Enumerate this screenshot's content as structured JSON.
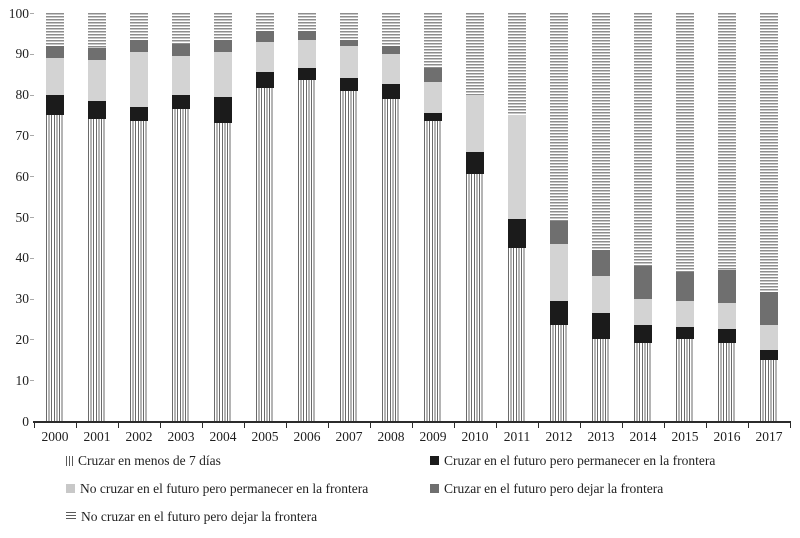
{
  "chart_data": {
    "type": "bar",
    "stacked": true,
    "orientation": "vertical",
    "title": "",
    "xlabel": "",
    "ylabel": "",
    "ylim": [
      0,
      100
    ],
    "yticks": [
      0,
      10,
      20,
      30,
      40,
      50,
      60,
      70,
      80,
      90,
      100
    ],
    "grid": false,
    "legend_position": "bottom",
    "categories": [
      "2000",
      "2001",
      "2002",
      "2003",
      "2004",
      "2005",
      "2006",
      "2007",
      "2008",
      "2009",
      "2010",
      "2011",
      "2012",
      "2013",
      "2014",
      "2015",
      "2016",
      "2017"
    ],
    "series": [
      {
        "key": "cruzar_menos_7_dias",
        "name": "Cruzar en menos de 7 días",
        "style": "vertical-lines",
        "values": [
          75,
          74,
          73.5,
          76.5,
          73,
          81.5,
          83.5,
          81,
          79,
          73.5,
          60.5,
          42.5,
          23.5,
          20,
          19,
          20,
          19,
          15
        ]
      },
      {
        "key": "cruzar_futuro_permanecer",
        "name": "Cruzar en el futuro pero permanecer en la frontera",
        "style": "solid-black",
        "values": [
          5,
          4.5,
          3.5,
          3.5,
          6.5,
          4,
          3,
          3,
          3.5,
          2,
          5.5,
          7,
          6,
          6.5,
          4.5,
          3,
          3.5,
          2.5
        ]
      },
      {
        "key": "no_cruzar_futuro_permanecer",
        "name": "No cruzar en el futuro pero permanecer en la frontera",
        "style": "solid-light-gray",
        "values": [
          9,
          10,
          13.5,
          9.5,
          11,
          7.5,
          7,
          8,
          7.5,
          7.5,
          14,
          25.5,
          14,
          9,
          6.5,
          6.5,
          6.5,
          6
        ]
      },
      {
        "key": "cruzar_futuro_dejar",
        "name": "Cruzar en el futuro pero dejar la frontera",
        "style": "solid-dark-gray",
        "values": [
          3,
          3,
          3,
          3,
          3,
          2.5,
          2,
          1.5,
          2,
          3.5,
          0,
          0,
          5.5,
          6.5,
          8,
          7,
          8,
          8
        ]
      },
      {
        "key": "no_cruzar_futuro_dejar",
        "name": "No cruzar en el futuro pero dejar la frontera",
        "style": "horizontal-lines",
        "values": [
          8,
          8.5,
          6.5,
          7.5,
          6.5,
          4.5,
          4.5,
          6.5,
          8,
          13.5,
          20,
          25,
          51,
          58,
          62,
          63.5,
          63,
          68.5
        ]
      }
    ]
  },
  "colors": {
    "black_segment": "#1b1b1b",
    "light_gray_segment": "#d3d3d3",
    "dark_gray_segment": "#6f6f6f",
    "pattern_line_gray": "#7a7a7a",
    "axis": "#2b2b2b",
    "text": "#1f1f1f",
    "background": "#ffffff"
  }
}
